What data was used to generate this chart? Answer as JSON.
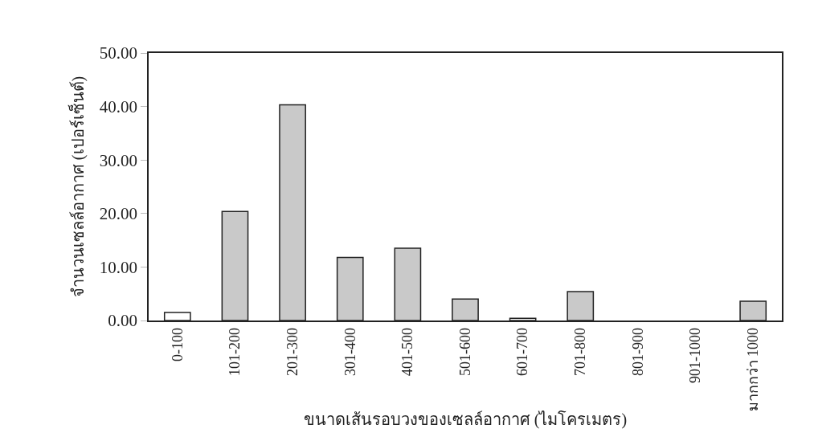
{
  "chart_data": {
    "type": "bar",
    "xlabel": "ขนาดเส้นรอบวงของเซลล์อากาศ (ไมโครเมตร)",
    "ylabel": "จำนวนเซลล์อากาศ (เปอร์เซ็นต์)",
    "categories": [
      "0-100",
      "101-200",
      "201-300",
      "301-400",
      "401-500",
      "501-600",
      "601-700",
      "701-800",
      "801-900",
      "901-1000",
      "มากกว่า 1000"
    ],
    "values": [
      1.5,
      20.4,
      40.3,
      11.8,
      13.5,
      4.0,
      0.4,
      5.4,
      0,
      0,
      3.6
    ],
    "colors": [
      "#ffffff",
      "#c9c9c9",
      "#c9c9c9",
      "#c9c9c9",
      "#c9c9c9",
      "#c9c9c9",
      "#ffffff",
      "#c9c9c9",
      "#c9c9c9",
      "#c9c9c9",
      "#c9c9c9"
    ],
    "ylim": [
      0,
      50
    ],
    "yticks": [
      {
        "value": 0,
        "label": "0.00"
      },
      {
        "value": 10,
        "label": "10.00"
      },
      {
        "value": 20,
        "label": "20.00"
      },
      {
        "value": 30,
        "label": "30.00"
      },
      {
        "value": 40,
        "label": "40.00"
      },
      {
        "value": 50,
        "label": "50.00"
      }
    ],
    "grid": false
  }
}
